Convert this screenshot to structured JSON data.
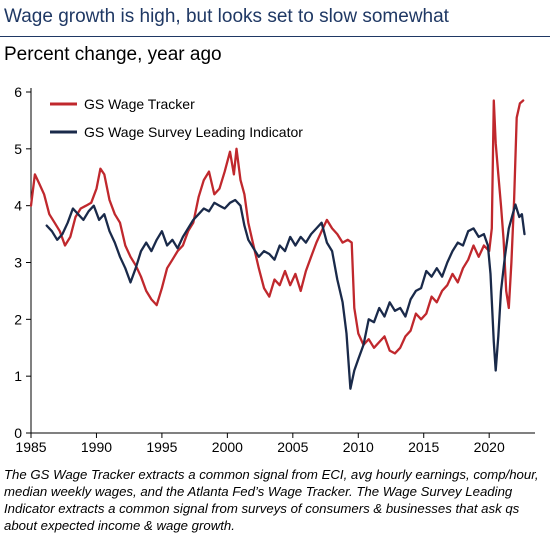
{
  "title": "Wage growth is high, but looks set to slow somewhat",
  "subtitle": "Percent change, year ago",
  "caption": "The GS Wage Tracker extracts a common signal from ECI, avg hourly earnings, comp/hour, median weekly wages, and the Atlanta Fed’s Wage Tracker. The Wage Survey Leading Indicator extracts a common signal from surveys of consumers & businesses that ask qs about expected income & wage growth.",
  "chart_data": {
    "type": "line",
    "title": "Wage growth is high, but looks set to slow somewhat",
    "ylabel": "Percent change, year ago",
    "xlim": [
      1985,
      2023.5
    ],
    "ylim": [
      0,
      6
    ],
    "x_ticks": [
      1985,
      1990,
      1995,
      2000,
      2005,
      2010,
      2015,
      2020
    ],
    "y_ticks": [
      0,
      1,
      2,
      3,
      4,
      5,
      6
    ],
    "legend_position": "top-left",
    "series": [
      {
        "name": "GS Wage Tracker",
        "color": "#c0282d",
        "points": [
          [
            1985.0,
            4.0
          ],
          [
            1985.3,
            4.55
          ],
          [
            1985.6,
            4.4
          ],
          [
            1986.0,
            4.2
          ],
          [
            1986.4,
            3.85
          ],
          [
            1986.8,
            3.7
          ],
          [
            1987.2,
            3.55
          ],
          [
            1987.6,
            3.3
          ],
          [
            1988.0,
            3.45
          ],
          [
            1988.4,
            3.8
          ],
          [
            1988.8,
            3.95
          ],
          [
            1989.2,
            4.0
          ],
          [
            1989.6,
            4.05
          ],
          [
            1990.0,
            4.3
          ],
          [
            1990.3,
            4.65
          ],
          [
            1990.6,
            4.55
          ],
          [
            1991.0,
            4.1
          ],
          [
            1991.4,
            3.85
          ],
          [
            1991.8,
            3.7
          ],
          [
            1992.2,
            3.3
          ],
          [
            1992.6,
            3.1
          ],
          [
            1993.0,
            2.95
          ],
          [
            1993.4,
            2.75
          ],
          [
            1993.8,
            2.5
          ],
          [
            1994.2,
            2.35
          ],
          [
            1994.6,
            2.25
          ],
          [
            1995.0,
            2.55
          ],
          [
            1995.4,
            2.9
          ],
          [
            1995.8,
            3.05
          ],
          [
            1996.2,
            3.2
          ],
          [
            1996.6,
            3.3
          ],
          [
            1997.0,
            3.55
          ],
          [
            1997.4,
            3.7
          ],
          [
            1997.8,
            4.15
          ],
          [
            1998.2,
            4.45
          ],
          [
            1998.6,
            4.6
          ],
          [
            1999.0,
            4.2
          ],
          [
            1999.4,
            4.3
          ],
          [
            1999.8,
            4.6
          ],
          [
            2000.2,
            4.95
          ],
          [
            2000.5,
            4.55
          ],
          [
            2000.7,
            5.0
          ],
          [
            2001.0,
            4.45
          ],
          [
            2001.3,
            4.2
          ],
          [
            2001.6,
            3.7
          ],
          [
            2002.0,
            3.3
          ],
          [
            2002.4,
            2.9
          ],
          [
            2002.8,
            2.55
          ],
          [
            2003.2,
            2.4
          ],
          [
            2003.6,
            2.7
          ],
          [
            2004.0,
            2.6
          ],
          [
            2004.4,
            2.85
          ],
          [
            2004.8,
            2.6
          ],
          [
            2005.2,
            2.8
          ],
          [
            2005.6,
            2.5
          ],
          [
            2006.0,
            2.85
          ],
          [
            2006.4,
            3.1
          ],
          [
            2006.8,
            3.35
          ],
          [
            2007.2,
            3.55
          ],
          [
            2007.6,
            3.75
          ],
          [
            2008.0,
            3.6
          ],
          [
            2008.4,
            3.5
          ],
          [
            2008.8,
            3.35
          ],
          [
            2009.2,
            3.4
          ],
          [
            2009.5,
            3.35
          ],
          [
            2009.7,
            2.2
          ],
          [
            2010.0,
            1.75
          ],
          [
            2010.4,
            1.55
          ],
          [
            2010.8,
            1.65
          ],
          [
            2011.2,
            1.5
          ],
          [
            2011.6,
            1.6
          ],
          [
            2012.0,
            1.7
          ],
          [
            2012.4,
            1.45
          ],
          [
            2012.8,
            1.4
          ],
          [
            2013.2,
            1.5
          ],
          [
            2013.6,
            1.7
          ],
          [
            2014.0,
            1.8
          ],
          [
            2014.4,
            2.1
          ],
          [
            2014.8,
            2.0
          ],
          [
            2015.2,
            2.1
          ],
          [
            2015.6,
            2.4
          ],
          [
            2016.0,
            2.3
          ],
          [
            2016.4,
            2.5
          ],
          [
            2016.8,
            2.6
          ],
          [
            2017.2,
            2.8
          ],
          [
            2017.6,
            2.65
          ],
          [
            2018.0,
            2.9
          ],
          [
            2018.4,
            3.05
          ],
          [
            2018.8,
            3.3
          ],
          [
            2019.2,
            3.1
          ],
          [
            2019.6,
            3.3
          ],
          [
            2020.0,
            3.2
          ],
          [
            2020.2,
            3.6
          ],
          [
            2020.35,
            5.85
          ],
          [
            2020.5,
            5.1
          ],
          [
            2020.7,
            4.55
          ],
          [
            2020.9,
            4.0
          ],
          [
            2021.1,
            3.4
          ],
          [
            2021.3,
            2.5
          ],
          [
            2021.5,
            2.2
          ],
          [
            2021.7,
            3.0
          ],
          [
            2021.9,
            4.1
          ],
          [
            2022.1,
            5.55
          ],
          [
            2022.35,
            5.8
          ],
          [
            2022.6,
            5.85
          ]
        ]
      },
      {
        "name": "GS Wage Survey Leading Indicator",
        "color": "#1a2a4a",
        "points": [
          [
            1986.2,
            3.65
          ],
          [
            1986.6,
            3.55
          ],
          [
            1987.0,
            3.4
          ],
          [
            1987.4,
            3.5
          ],
          [
            1987.8,
            3.7
          ],
          [
            1988.2,
            3.95
          ],
          [
            1988.6,
            3.85
          ],
          [
            1989.0,
            3.75
          ],
          [
            1989.4,
            3.9
          ],
          [
            1989.8,
            4.0
          ],
          [
            1990.2,
            3.75
          ],
          [
            1990.6,
            3.85
          ],
          [
            1991.0,
            3.55
          ],
          [
            1991.4,
            3.35
          ],
          [
            1991.8,
            3.1
          ],
          [
            1992.2,
            2.9
          ],
          [
            1992.6,
            2.65
          ],
          [
            1993.0,
            2.9
          ],
          [
            1993.4,
            3.2
          ],
          [
            1993.8,
            3.35
          ],
          [
            1994.2,
            3.2
          ],
          [
            1994.6,
            3.4
          ],
          [
            1995.0,
            3.55
          ],
          [
            1995.4,
            3.3
          ],
          [
            1995.8,
            3.4
          ],
          [
            1996.2,
            3.25
          ],
          [
            1996.6,
            3.45
          ],
          [
            1997.0,
            3.6
          ],
          [
            1997.4,
            3.75
          ],
          [
            1997.8,
            3.85
          ],
          [
            1998.2,
            3.95
          ],
          [
            1998.6,
            3.9
          ],
          [
            1999.0,
            4.05
          ],
          [
            1999.4,
            4.0
          ],
          [
            1999.8,
            3.95
          ],
          [
            2000.2,
            4.05
          ],
          [
            2000.6,
            4.1
          ],
          [
            2001.0,
            4.0
          ],
          [
            2001.3,
            3.65
          ],
          [
            2001.6,
            3.4
          ],
          [
            2002.0,
            3.25
          ],
          [
            2002.4,
            3.1
          ],
          [
            2002.8,
            3.2
          ],
          [
            2003.2,
            3.15
          ],
          [
            2003.6,
            3.05
          ],
          [
            2004.0,
            3.3
          ],
          [
            2004.4,
            3.2
          ],
          [
            2004.8,
            3.45
          ],
          [
            2005.2,
            3.3
          ],
          [
            2005.6,
            3.45
          ],
          [
            2006.0,
            3.35
          ],
          [
            2006.4,
            3.5
          ],
          [
            2006.8,
            3.6
          ],
          [
            2007.2,
            3.7
          ],
          [
            2007.6,
            3.35
          ],
          [
            2008.0,
            3.2
          ],
          [
            2008.4,
            2.7
          ],
          [
            2008.8,
            2.3
          ],
          [
            2009.1,
            1.75
          ],
          [
            2009.4,
            0.78
          ],
          [
            2009.7,
            1.1
          ],
          [
            2010.0,
            1.3
          ],
          [
            2010.4,
            1.55
          ],
          [
            2010.8,
            2.0
          ],
          [
            2011.2,
            1.95
          ],
          [
            2011.6,
            2.2
          ],
          [
            2012.0,
            2.05
          ],
          [
            2012.4,
            2.3
          ],
          [
            2012.8,
            2.15
          ],
          [
            2013.2,
            2.2
          ],
          [
            2013.6,
            2.05
          ],
          [
            2014.0,
            2.35
          ],
          [
            2014.4,
            2.5
          ],
          [
            2014.8,
            2.55
          ],
          [
            2015.2,
            2.85
          ],
          [
            2015.6,
            2.75
          ],
          [
            2016.0,
            2.9
          ],
          [
            2016.4,
            2.75
          ],
          [
            2016.8,
            3.0
          ],
          [
            2017.2,
            3.2
          ],
          [
            2017.6,
            3.35
          ],
          [
            2018.0,
            3.3
          ],
          [
            2018.4,
            3.55
          ],
          [
            2018.8,
            3.6
          ],
          [
            2019.2,
            3.45
          ],
          [
            2019.6,
            3.5
          ],
          [
            2019.9,
            3.3
          ],
          [
            2020.1,
            2.8
          ],
          [
            2020.35,
            1.6
          ],
          [
            2020.5,
            1.1
          ],
          [
            2020.7,
            1.7
          ],
          [
            2020.9,
            2.5
          ],
          [
            2021.2,
            3.1
          ],
          [
            2021.5,
            3.6
          ],
          [
            2021.8,
            3.85
          ],
          [
            2022.0,
            4.02
          ],
          [
            2022.3,
            3.8
          ],
          [
            2022.5,
            3.85
          ],
          [
            2022.7,
            3.5
          ]
        ]
      }
    ]
  }
}
